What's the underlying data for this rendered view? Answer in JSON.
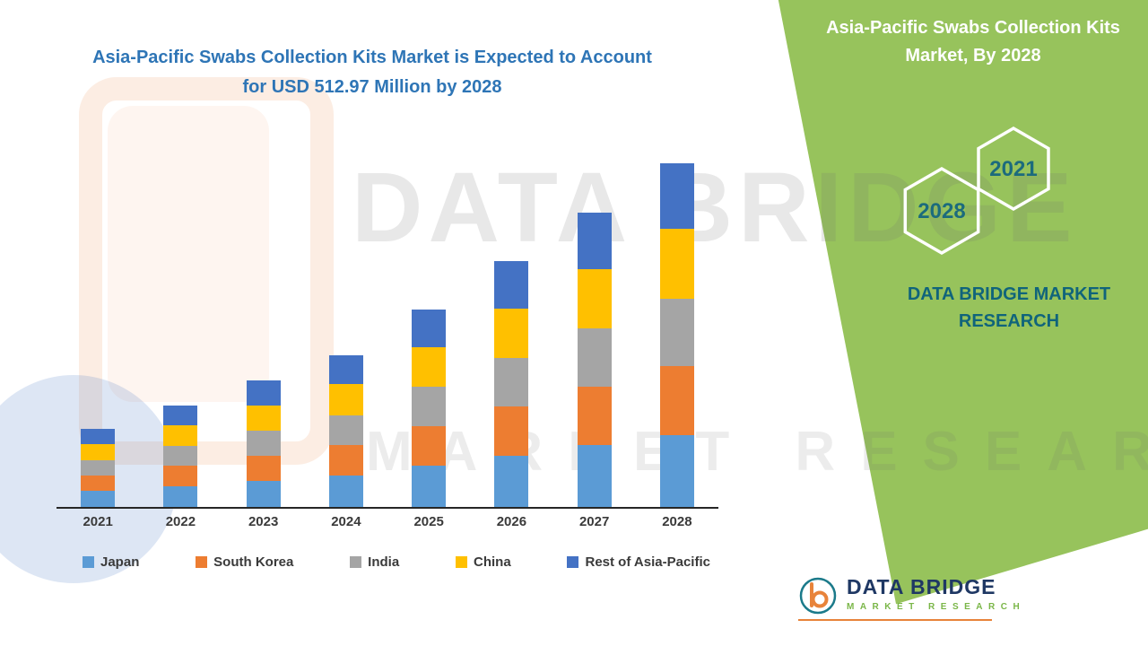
{
  "main": {
    "title": "Asia-Pacific Swabs Collection Kits Market is Expected to Account for USD 512.97 Million by 2028"
  },
  "right_panel": {
    "title": "Asia-Pacific Swabs Collection Kits Market, By 2028",
    "hexagon_front": "2028",
    "hexagon_back": "2021",
    "brand_text": "DATA BRIDGE MARKET RESEARCH",
    "panel_color": "#97c35c",
    "hexagon_text_color": "#1c6b7d"
  },
  "watermark": {
    "line1": "DATA BRIDGE",
    "line2": "MARKET RESEARCH"
  },
  "logo": {
    "name": "DATA BRIDGE",
    "subtitle": "MARKET RESEARCH"
  },
  "chart_data": {
    "type": "bar",
    "stacked": true,
    "title": "Asia-Pacific Swabs Collection Kits Market is Expected to Account for USD 512.97 Million by 2028",
    "unit": "USD Million",
    "categories": [
      "2021",
      "2022",
      "2023",
      "2024",
      "2025",
      "2026",
      "2027",
      "2028"
    ],
    "series": [
      {
        "name": "Japan",
        "color": "#5B9BD5",
        "values": [
          24,
          31,
          39,
          47,
          62,
          77,
          92,
          107
        ]
      },
      {
        "name": "South Korea",
        "color": "#ED7D31",
        "values": [
          23,
          30,
          38,
          45,
          59,
          73,
          88,
          103
        ]
      },
      {
        "name": "India",
        "color": "#A5A5A5",
        "values": [
          23,
          30,
          37,
          45,
          58,
          72,
          86,
          101
        ]
      },
      {
        "name": "China",
        "color": "#FFC000",
        "values": [
          24,
          31,
          38,
          46,
          60,
          74,
          89,
          104
        ]
      },
      {
        "name": "Rest of Asia-Pacific",
        "color": "#4472C4",
        "values": [
          23,
          30,
          37,
          44,
          56,
          71,
          85,
          98
        ]
      }
    ],
    "totals": [
      117,
      152,
      189,
      227,
      295,
      367,
      440,
      513
    ],
    "ylim": [
      0,
      520
    ],
    "grid": false,
    "y_axis_visible": false,
    "legend_position": "bottom"
  }
}
